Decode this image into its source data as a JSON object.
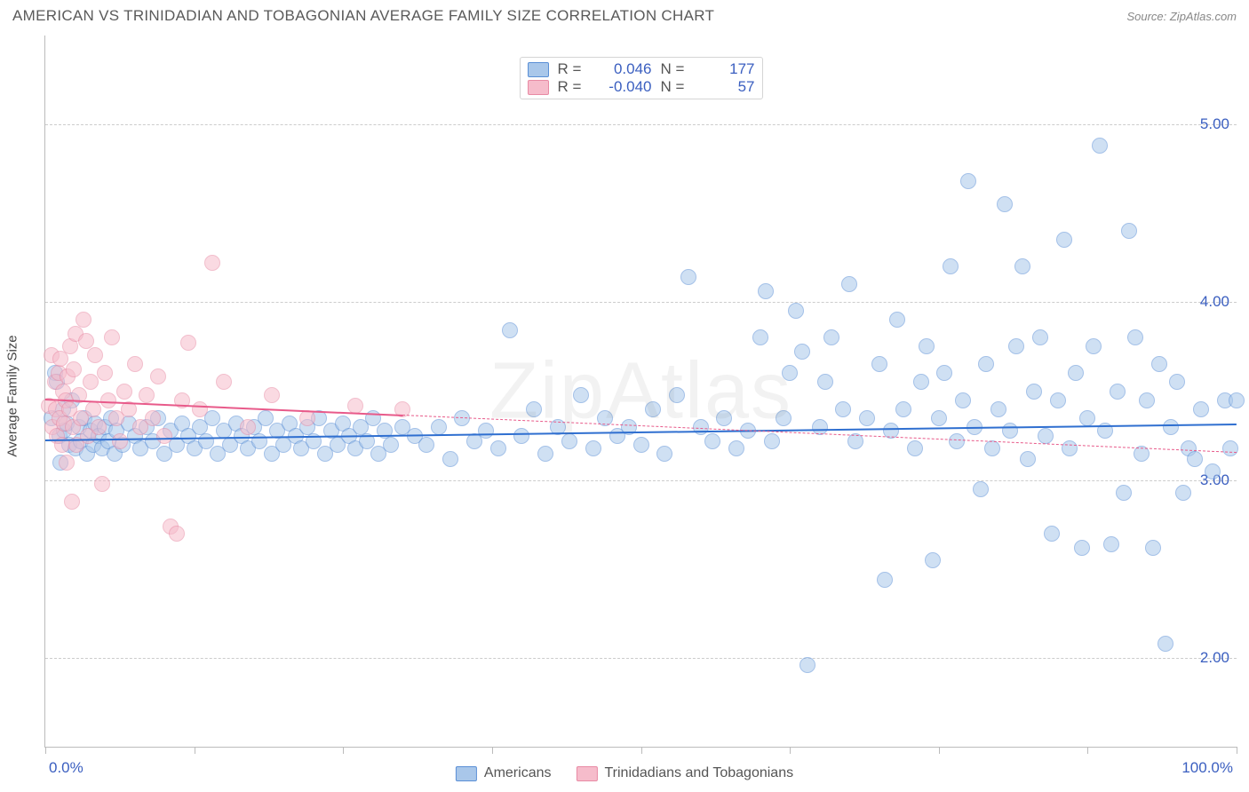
{
  "title": "AMERICAN VS TRINIDADIAN AND TOBAGONIAN AVERAGE FAMILY SIZE CORRELATION CHART",
  "source": "Source: ZipAtlas.com",
  "watermark": "ZipAtlas",
  "chart": {
    "type": "scatter",
    "background_color": "#ffffff",
    "grid_color": "#cccccc",
    "axis_color": "#bbbbbb",
    "yaxis_title": "Average Family Size",
    "yaxis_title_fontsize": 15,
    "yaxis_title_color": "#444444",
    "xlim": [
      0,
      100
    ],
    "ylim": [
      1.5,
      5.5
    ],
    "yticks": [
      2.0,
      3.0,
      4.0,
      5.0
    ],
    "ytick_labels": [
      "2.00",
      "3.00",
      "4.00",
      "5.00"
    ],
    "ytick_color": "#3b5fc0",
    "ytick_fontsize": 17,
    "xtick_positions": [
      0,
      12.5,
      25,
      37.5,
      50,
      62.5,
      75,
      87.5,
      100
    ],
    "xlabel_min": "0.0%",
    "xlabel_max": "100.0%",
    "xlabel_color": "#3b5fc0",
    "xlabel_fontsize": 17,
    "marker_radius": 9,
    "marker_opacity": 0.55,
    "series": [
      {
        "name": "Americans",
        "fill": "#a9c7ea",
        "stroke": "#5a8fd6",
        "line_color": "#2f6fd0",
        "R": "0.046",
        "N": "177",
        "regression": {
          "x0": 0,
          "y0": 3.23,
          "x1": 100,
          "y1": 3.32,
          "dash_from_x": null
        },
        "points": [
          [
            0.5,
            3.35
          ],
          [
            0.8,
            3.6
          ],
          [
            1.0,
            3.55
          ],
          [
            1.2,
            3.25
          ],
          [
            1.3,
            3.1
          ],
          [
            1.5,
            3.4
          ],
          [
            1.6,
            3.28
          ],
          [
            1.8,
            3.32
          ],
          [
            2.0,
            3.2
          ],
          [
            2.2,
            3.45
          ],
          [
            2.5,
            3.18
          ],
          [
            2.8,
            3.3
          ],
          [
            3.0,
            3.22
          ],
          [
            3.3,
            3.35
          ],
          [
            3.5,
            3.15
          ],
          [
            3.8,
            3.28
          ],
          [
            4.0,
            3.2
          ],
          [
            4.2,
            3.32
          ],
          [
            4.5,
            3.25
          ],
          [
            4.8,
            3.18
          ],
          [
            5.0,
            3.3
          ],
          [
            5.3,
            3.22
          ],
          [
            5.5,
            3.35
          ],
          [
            5.8,
            3.15
          ],
          [
            6.0,
            3.28
          ],
          [
            6.5,
            3.2
          ],
          [
            7.0,
            3.32
          ],
          [
            7.5,
            3.25
          ],
          [
            8.0,
            3.18
          ],
          [
            8.5,
            3.3
          ],
          [
            9.0,
            3.22
          ],
          [
            9.5,
            3.35
          ],
          [
            10.0,
            3.15
          ],
          [
            10.5,
            3.28
          ],
          [
            11.0,
            3.2
          ],
          [
            11.5,
            3.32
          ],
          [
            12.0,
            3.25
          ],
          [
            12.5,
            3.18
          ],
          [
            13.0,
            3.3
          ],
          [
            13.5,
            3.22
          ],
          [
            14.0,
            3.35
          ],
          [
            14.5,
            3.15
          ],
          [
            15.0,
            3.28
          ],
          [
            15.5,
            3.2
          ],
          [
            16.0,
            3.32
          ],
          [
            16.5,
            3.25
          ],
          [
            17.0,
            3.18
          ],
          [
            17.5,
            3.3
          ],
          [
            18.0,
            3.22
          ],
          [
            18.5,
            3.35
          ],
          [
            19.0,
            3.15
          ],
          [
            19.5,
            3.28
          ],
          [
            20.0,
            3.2
          ],
          [
            20.5,
            3.32
          ],
          [
            21.0,
            3.25
          ],
          [
            21.5,
            3.18
          ],
          [
            22.0,
            3.3
          ],
          [
            22.5,
            3.22
          ],
          [
            23.0,
            3.35
          ],
          [
            23.5,
            3.15
          ],
          [
            24.0,
            3.28
          ],
          [
            24.5,
            3.2
          ],
          [
            25.0,
            3.32
          ],
          [
            25.5,
            3.25
          ],
          [
            26.0,
            3.18
          ],
          [
            26.5,
            3.3
          ],
          [
            27.0,
            3.22
          ],
          [
            27.5,
            3.35
          ],
          [
            28.0,
            3.15
          ],
          [
            28.5,
            3.28
          ],
          [
            29.0,
            3.2
          ],
          [
            30.0,
            3.3
          ],
          [
            31.0,
            3.25
          ],
          [
            32.0,
            3.2
          ],
          [
            33.0,
            3.3
          ],
          [
            34.0,
            3.12
          ],
          [
            35.0,
            3.35
          ],
          [
            36.0,
            3.22
          ],
          [
            37.0,
            3.28
          ],
          [
            38.0,
            3.18
          ],
          [
            39.0,
            3.84
          ],
          [
            40.0,
            3.25
          ],
          [
            41.0,
            3.4
          ],
          [
            42.0,
            3.15
          ],
          [
            43.0,
            3.3
          ],
          [
            44.0,
            3.22
          ],
          [
            45.0,
            3.48
          ],
          [
            46.0,
            3.18
          ],
          [
            47.0,
            3.35
          ],
          [
            48.0,
            3.25
          ],
          [
            49.0,
            3.3
          ],
          [
            50.0,
            3.2
          ],
          [
            51.0,
            3.4
          ],
          [
            52.0,
            3.15
          ],
          [
            53.0,
            3.48
          ],
          [
            54.0,
            4.14
          ],
          [
            55.0,
            3.3
          ],
          [
            56.0,
            3.22
          ],
          [
            57.0,
            3.35
          ],
          [
            58.0,
            3.18
          ],
          [
            59.0,
            3.28
          ],
          [
            60.0,
            3.8
          ],
          [
            60.5,
            4.06
          ],
          [
            61.0,
            3.22
          ],
          [
            62.0,
            3.35
          ],
          [
            62.5,
            3.6
          ],
          [
            63.0,
            3.95
          ],
          [
            63.5,
            3.72
          ],
          [
            64.0,
            1.96
          ],
          [
            65.0,
            3.3
          ],
          [
            65.5,
            3.55
          ],
          [
            66.0,
            3.8
          ],
          [
            67.0,
            3.4
          ],
          [
            67.5,
            4.1
          ],
          [
            68.0,
            3.22
          ],
          [
            69.0,
            3.35
          ],
          [
            70.0,
            3.65
          ],
          [
            70.5,
            2.44
          ],
          [
            71.0,
            3.28
          ],
          [
            71.5,
            3.9
          ],
          [
            72.0,
            3.4
          ],
          [
            73.0,
            3.18
          ],
          [
            73.5,
            3.55
          ],
          [
            74.0,
            3.75
          ],
          [
            74.5,
            2.55
          ],
          [
            75.0,
            3.35
          ],
          [
            75.5,
            3.6
          ],
          [
            76.0,
            4.2
          ],
          [
            76.5,
            3.22
          ],
          [
            77.0,
            3.45
          ],
          [
            77.5,
            4.68
          ],
          [
            78.0,
            3.3
          ],
          [
            78.5,
            2.95
          ],
          [
            79.0,
            3.65
          ],
          [
            79.5,
            3.18
          ],
          [
            80.0,
            3.4
          ],
          [
            80.5,
            4.55
          ],
          [
            81.0,
            3.28
          ],
          [
            81.5,
            3.75
          ],
          [
            82.0,
            4.2
          ],
          [
            82.5,
            3.12
          ],
          [
            83.0,
            3.5
          ],
          [
            83.5,
            3.8
          ],
          [
            84.0,
            3.25
          ],
          [
            84.5,
            2.7
          ],
          [
            85.0,
            3.45
          ],
          [
            85.5,
            4.35
          ],
          [
            86.0,
            3.18
          ],
          [
            86.5,
            3.6
          ],
          [
            87.0,
            2.62
          ],
          [
            87.5,
            3.35
          ],
          [
            88.0,
            3.75
          ],
          [
            88.5,
            4.88
          ],
          [
            89.0,
            3.28
          ],
          [
            89.5,
            2.64
          ],
          [
            90.0,
            3.5
          ],
          [
            90.5,
            2.93
          ],
          [
            91.0,
            4.4
          ],
          [
            91.5,
            3.8
          ],
          [
            92.0,
            3.15
          ],
          [
            92.5,
            3.45
          ],
          [
            93.0,
            2.62
          ],
          [
            93.5,
            3.65
          ],
          [
            94.0,
            2.08
          ],
          [
            94.5,
            3.3
          ],
          [
            95.0,
            3.55
          ],
          [
            95.5,
            2.93
          ],
          [
            96.0,
            3.18
          ],
          [
            96.5,
            3.12
          ],
          [
            97.0,
            3.4
          ],
          [
            98.0,
            3.05
          ],
          [
            99.0,
            3.45
          ],
          [
            99.5,
            3.18
          ],
          [
            100.0,
            3.45
          ]
        ]
      },
      {
        "name": "Trinidadians and Tobagonians",
        "fill": "#f6bccb",
        "stroke": "#e88aa4",
        "line_color": "#e85a8a",
        "R": "-0.040",
        "N": "57",
        "regression": {
          "x0": 0,
          "y0": 3.46,
          "x1": 100,
          "y1": 3.16,
          "dash_from_x": 30
        },
        "points": [
          [
            0.3,
            3.42
          ],
          [
            0.5,
            3.7
          ],
          [
            0.6,
            3.3
          ],
          [
            0.8,
            3.55
          ],
          [
            0.9,
            3.4
          ],
          [
            1.0,
            3.25
          ],
          [
            1.1,
            3.6
          ],
          [
            1.2,
            3.35
          ],
          [
            1.3,
            3.68
          ],
          [
            1.4,
            3.2
          ],
          [
            1.5,
            3.5
          ],
          [
            1.6,
            3.32
          ],
          [
            1.7,
            3.45
          ],
          [
            1.8,
            3.1
          ],
          [
            1.9,
            3.58
          ],
          [
            2.0,
            3.4
          ],
          [
            2.1,
            3.75
          ],
          [
            2.2,
            2.88
          ],
          [
            2.3,
            3.3
          ],
          [
            2.4,
            3.62
          ],
          [
            2.5,
            3.82
          ],
          [
            2.6,
            3.2
          ],
          [
            2.8,
            3.48
          ],
          [
            3.0,
            3.35
          ],
          [
            3.2,
            3.9
          ],
          [
            3.4,
            3.78
          ],
          [
            3.6,
            3.25
          ],
          [
            3.8,
            3.55
          ],
          [
            4.0,
            3.4
          ],
          [
            4.2,
            3.7
          ],
          [
            4.5,
            3.3
          ],
          [
            4.8,
            2.98
          ],
          [
            5.0,
            3.6
          ],
          [
            5.3,
            3.45
          ],
          [
            5.6,
            3.8
          ],
          [
            6.0,
            3.35
          ],
          [
            6.3,
            3.22
          ],
          [
            6.6,
            3.5
          ],
          [
            7.0,
            3.4
          ],
          [
            7.5,
            3.65
          ],
          [
            8.0,
            3.3
          ],
          [
            8.5,
            3.48
          ],
          [
            9.0,
            3.35
          ],
          [
            9.5,
            3.58
          ],
          [
            10.0,
            3.25
          ],
          [
            10.5,
            2.74
          ],
          [
            11.0,
            2.7
          ],
          [
            11.5,
            3.45
          ],
          [
            12.0,
            3.77
          ],
          [
            13.0,
            3.4
          ],
          [
            14.0,
            4.22
          ],
          [
            15.0,
            3.55
          ],
          [
            17.0,
            3.3
          ],
          [
            19.0,
            3.48
          ],
          [
            22.0,
            3.35
          ],
          [
            26.0,
            3.42
          ],
          [
            30.0,
            3.4
          ]
        ]
      }
    ]
  },
  "legend_top": {
    "border_color": "#d5d5d5",
    "bg": "#ffffff",
    "label_color": "#555555",
    "value_color": "#3b5fc0",
    "fontsize": 17
  },
  "legend_bottom": {
    "fontsize": 16,
    "color": "#555555",
    "items": [
      {
        "label": "Americans",
        "fill": "#a9c7ea",
        "stroke": "#5a8fd6"
      },
      {
        "label": "Trinidadians and Tobagonians",
        "fill": "#f6bccb",
        "stroke": "#e88aa4"
      }
    ]
  }
}
